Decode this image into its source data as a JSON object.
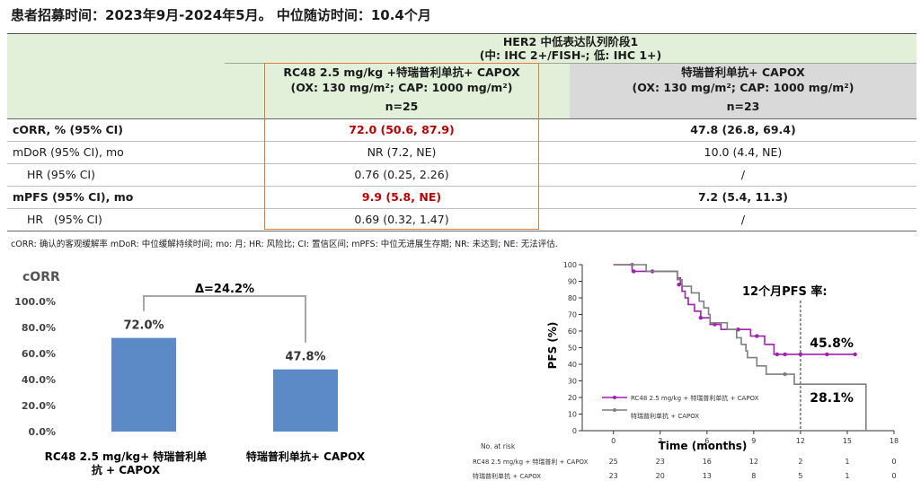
{
  "title": "患者招募时间：2023年9月-2024年5月。 中位随访时间：10.4个月",
  "table": {
    "group_title": "HER2 中低表达队列阶段1",
    "group_subtitle": "(中: IHC 2+/FISH-; 低: IHC 1+)",
    "arms": [
      {
        "name": "RC48 2.5 mg/kg +特瑞普利单抗+ CAPOX",
        "dose": "(OX: 130 mg/m²; CAP: 1000 mg/m²)",
        "n": "n=25"
      },
      {
        "name": "特瑞普利单抗+ CAPOX",
        "dose": "(OX: 130 mg/m²; CAP: 1000 mg/m²)",
        "n": "n=23"
      }
    ],
    "rows": [
      {
        "label": "cORR, % (95% CI)",
        "arm1": "72.0 (50.6, 87.9)",
        "arm2": "47.8 (26.8, 69.4)"
      },
      {
        "label": "mDoR (95% CI), mo",
        "arm1": "NR (7.2, NE)",
        "arm2": "10.0 (4.4, NE)"
      },
      {
        "label": "HR (95% CI)",
        "arm1": "0.76 (0.25, 2.26)",
        "arm2": "/"
      },
      {
        "label": "mPFS (95% CI), mo",
        "arm1": "9.9 (5.8, NE)",
        "arm2": "7.2 (5.4, 11.3)"
      },
      {
        "label": "HR   (95% CI)",
        "arm1": "0.69 (0.32, 1.47)",
        "arm2": "/"
      }
    ]
  },
  "footnote": "cORR: 确认的客观缓解率 mDoR: 中位缓解持续时间; mo: 月; HR: 风险比; CI: 置信区间; mPFS: 中位无进展生存期; NR: 未达到; NE: 无法评估.",
  "chart_data": [
    {
      "type": "bar",
      "title": "cORR",
      "categories": [
        "RC48 2.5 mg/kg+ 特瑞普利单抗 + CAPOX",
        "特瑞普利单抗+ CAPOX"
      ],
      "category_lines": [
        [
          "RC48 2.5 mg/kg+ 特瑞普利单",
          "抗 + CAPOX"
        ],
        [
          "特瑞普利单抗+ CAPOX"
        ]
      ],
      "values": [
        72.0,
        47.8
      ],
      "value_labels": [
        "72.0%",
        "47.8%"
      ],
      "yticks": [
        "0.0%",
        "20.0%",
        "40.0%",
        "60.0%",
        "80.0%",
        "100.0%"
      ],
      "ylim": [
        0,
        100
      ],
      "annotation": "Δ=24.2%",
      "bar_color": "#5b8ac6"
    },
    {
      "type": "line",
      "title": "12个月PFS 率:",
      "xlabel": "Time (months)",
      "ylabel": "PFS (%)",
      "xlim": [
        -2,
        18
      ],
      "ylim": [
        0,
        100
      ],
      "xticks": [
        0,
        3,
        6,
        9,
        12,
        15,
        18
      ],
      "yticks": [
        0,
        10,
        20,
        30,
        40,
        50,
        60,
        70,
        80,
        90,
        100
      ],
      "reference_x": 12,
      "series": [
        {
          "name": "RC48 2.5 mg/kg + 特瑞普利单抗 + CAPOX",
          "color": "#a020b0",
          "steps": [
            [
              0,
              100
            ],
            [
              1.2,
              100
            ],
            [
              1.2,
              96
            ],
            [
              4,
              96
            ],
            [
              4.1,
              92
            ],
            [
              4.3,
              88
            ],
            [
              4.4,
              84
            ],
            [
              4.6,
              80
            ],
            [
              4.8,
              76
            ],
            [
              5.2,
              72
            ],
            [
              5.6,
              68
            ],
            [
              6.2,
              64
            ],
            [
              6.9,
              61
            ],
            [
              8.8,
              61
            ],
            [
              8.8,
              57
            ],
            [
              9.7,
              52
            ],
            [
              10.3,
              46
            ],
            [
              15.5,
              46
            ]
          ],
          "censors": [
            [
              1.3,
              96
            ],
            [
              2.5,
              96
            ],
            [
              4.2,
              88
            ],
            [
              5.6,
              68
            ],
            [
              6.5,
              64
            ],
            [
              8,
              61
            ],
            [
              9.2,
              57
            ],
            [
              10.5,
              46
            ],
            [
              11,
              46
            ],
            [
              12,
              46
            ],
            [
              13.7,
              46
            ],
            [
              15.5,
              46
            ]
          ],
          "end_label": "45.8%"
        },
        {
          "name": "特瑞普利单抗 + CAPOX",
          "color": "#7f7f7f",
          "steps": [
            [
              0,
              100
            ],
            [
              2.1,
              100
            ],
            [
              2.1,
              96
            ],
            [
              4.1,
              96
            ],
            [
              4.1,
              91
            ],
            [
              4.4,
              87
            ],
            [
              5,
              83
            ],
            [
              5.5,
              78
            ],
            [
              5.8,
              74
            ],
            [
              6.1,
              70
            ],
            [
              6.2,
              65
            ],
            [
              7,
              65
            ],
            [
              7.3,
              61
            ],
            [
              7.9,
              56
            ],
            [
              8.2,
              52
            ],
            [
              8.5,
              48
            ],
            [
              8.6,
              44
            ],
            [
              9.2,
              39
            ],
            [
              9.8,
              34
            ],
            [
              11.2,
              34
            ],
            [
              11.6,
              28
            ],
            [
              16.2,
              28
            ],
            [
              16.2,
              0
            ]
          ],
          "censors": [
            [
              1.2,
              100
            ],
            [
              11,
              34
            ]
          ],
          "end_label": "28.1%"
        }
      ],
      "at_risk": {
        "title": "No. at risk",
        "rows": [
          {
            "label": "RC48 2.5 mg/kg + 特瑞普利 + CAPOX",
            "values": [
              25,
              23,
              16,
              12,
              2,
              1,
              0
            ]
          },
          {
            "label": "特瑞普利单抗 + CAPOX",
            "values": [
              23,
              20,
              13,
              8,
              5,
              1,
              0
            ]
          }
        ]
      }
    }
  ]
}
